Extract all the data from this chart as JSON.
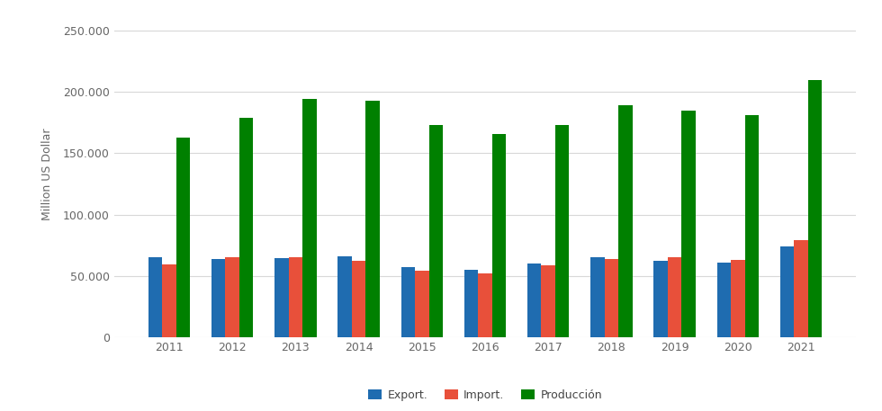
{
  "years": [
    2011,
    2012,
    2013,
    2014,
    2015,
    2016,
    2017,
    2018,
    2019,
    2020,
    2021
  ],
  "exports": [
    65000,
    64000,
    64500,
    66000,
    57000,
    55000,
    60000,
    65000,
    62500,
    60500,
    74000
  ],
  "imports": [
    59000,
    65000,
    65000,
    62000,
    54000,
    52000,
    58500,
    64000,
    65000,
    63000,
    79000
  ],
  "produccion": [
    163000,
    179000,
    194000,
    193000,
    173000,
    166000,
    173000,
    189000,
    185000,
    181000,
    210000
  ],
  "export_color": "#1f6cb0",
  "import_color": "#e8503a",
  "produccion_color": "#008000",
  "ylabel": "Million US Dollar",
  "ylim": [
    0,
    265000
  ],
  "yticks": [
    0,
    50000,
    100000,
    150000,
    200000,
    250000
  ],
  "ytick_labels": [
    "0",
    "50.000",
    "100.000",
    "150.000",
    "200.000",
    "250.000"
  ],
  "legend_labels": [
    "Export.",
    "Import.",
    "Producción"
  ],
  "background_color": "#ffffff",
  "grid_color": "#d8d8d8",
  "bar_width": 0.22,
  "fig_width": 9.8,
  "fig_height": 4.57,
  "dpi": 100
}
